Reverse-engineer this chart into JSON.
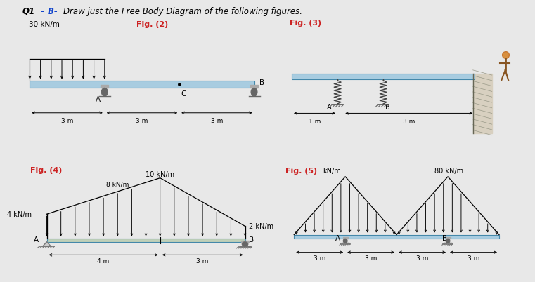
{
  "title_q": "Q1",
  "title_b": "– B-",
  "title_rest": "  Draw just the Free Body Diagram of the following figures.",
  "bg_color": "#e8e8e8",
  "panel_bg": "#ffffff",
  "border_color": "#4488bb",
  "fig2_label": "Fig. (2)",
  "fig2_load": "30 kN/m",
  "fig3_label": "Fig. (3)",
  "fig4_label": "Fig. (4)",
  "fig4_loads": [
    "4 kN/m",
    "8 kN/m",
    "10 kN/m",
    "2 kN/m"
  ],
  "fig5_label": "Fig. (5)",
  "fig5_load_left": "kN/m",
  "fig5_load_right": "80 kN/m",
  "beam_color_blue": "#a8cce0",
  "beam_color_gray": "#b8c8b0",
  "support_color": "#777777",
  "arrow_color": "#111111",
  "dim_color": "#111111",
  "red_label_color": "#cc2222",
  "lw_beam": 1.0,
  "lw_arrow": 0.8,
  "lw_dim": 0.8
}
